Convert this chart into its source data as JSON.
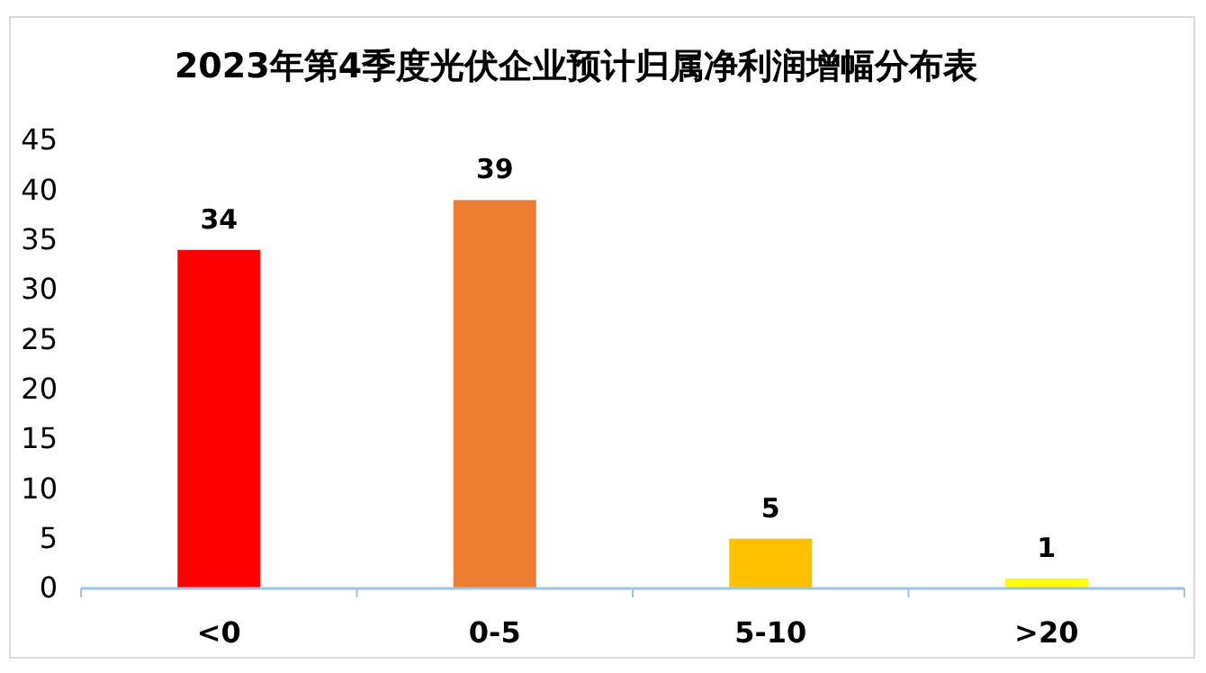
{
  "chart_data": {
    "type": "bar",
    "title": "2023年第4季度光伏企业预计归属净利润增幅分布表",
    "categories": [
      "<0",
      "0-5",
      "5-10",
      ">20"
    ],
    "values": [
      34,
      39,
      5,
      1
    ],
    "colors": [
      "#ff0000",
      "#ed7d31",
      "#ffc000",
      "#ffff00"
    ],
    "ylim": [
      0,
      45
    ],
    "yticks": [
      0,
      5,
      10,
      15,
      20,
      25,
      30,
      35,
      40,
      45
    ],
    "data_labels": true,
    "grid": false
  }
}
